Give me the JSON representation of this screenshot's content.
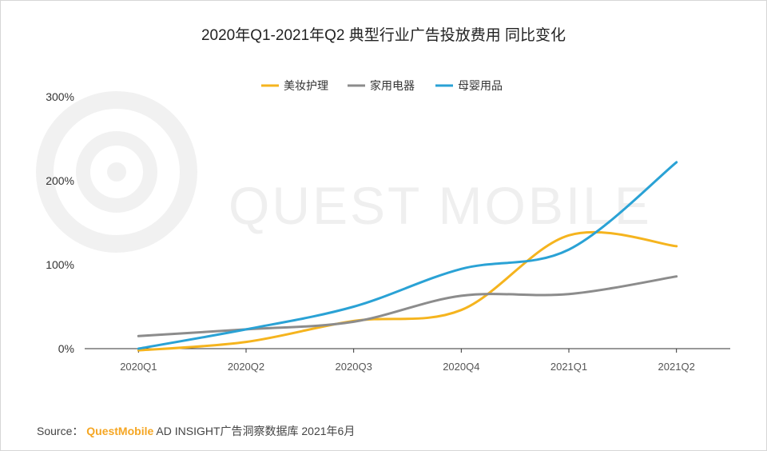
{
  "chart_data": {
    "type": "line",
    "title": "2020年Q1-2021年Q2 典型行业广告投放费用 同比变化",
    "categories": [
      "2020Q1",
      "2020Q2",
      "2020Q3",
      "2020Q4",
      "2021Q1",
      "2021Q2"
    ],
    "y_ticks": [
      "0%",
      "100%",
      "200%",
      "300%"
    ],
    "ylim": [
      0,
      300
    ],
    "y_unit": "%",
    "grid": false,
    "legend_position": "top-center",
    "series": [
      {
        "name": "美妆护理",
        "color": "#F5B41E",
        "values": [
          -2,
          8,
          33,
          46,
          135,
          122
        ]
      },
      {
        "name": "家用电器",
        "color": "#8C8C8C",
        "values": [
          15,
          23,
          32,
          63,
          65,
          86
        ]
      },
      {
        "name": "母婴用品",
        "color": "#2AA2D5",
        "values": [
          0,
          23,
          50,
          95,
          118,
          222
        ]
      }
    ]
  },
  "watermark": {
    "text": "QUEST MOBILE"
  },
  "source": {
    "label": "Source：",
    "brand": "QuestMobile",
    "text": "AD INSIGHT广告洞察数据库 2021年6月"
  }
}
